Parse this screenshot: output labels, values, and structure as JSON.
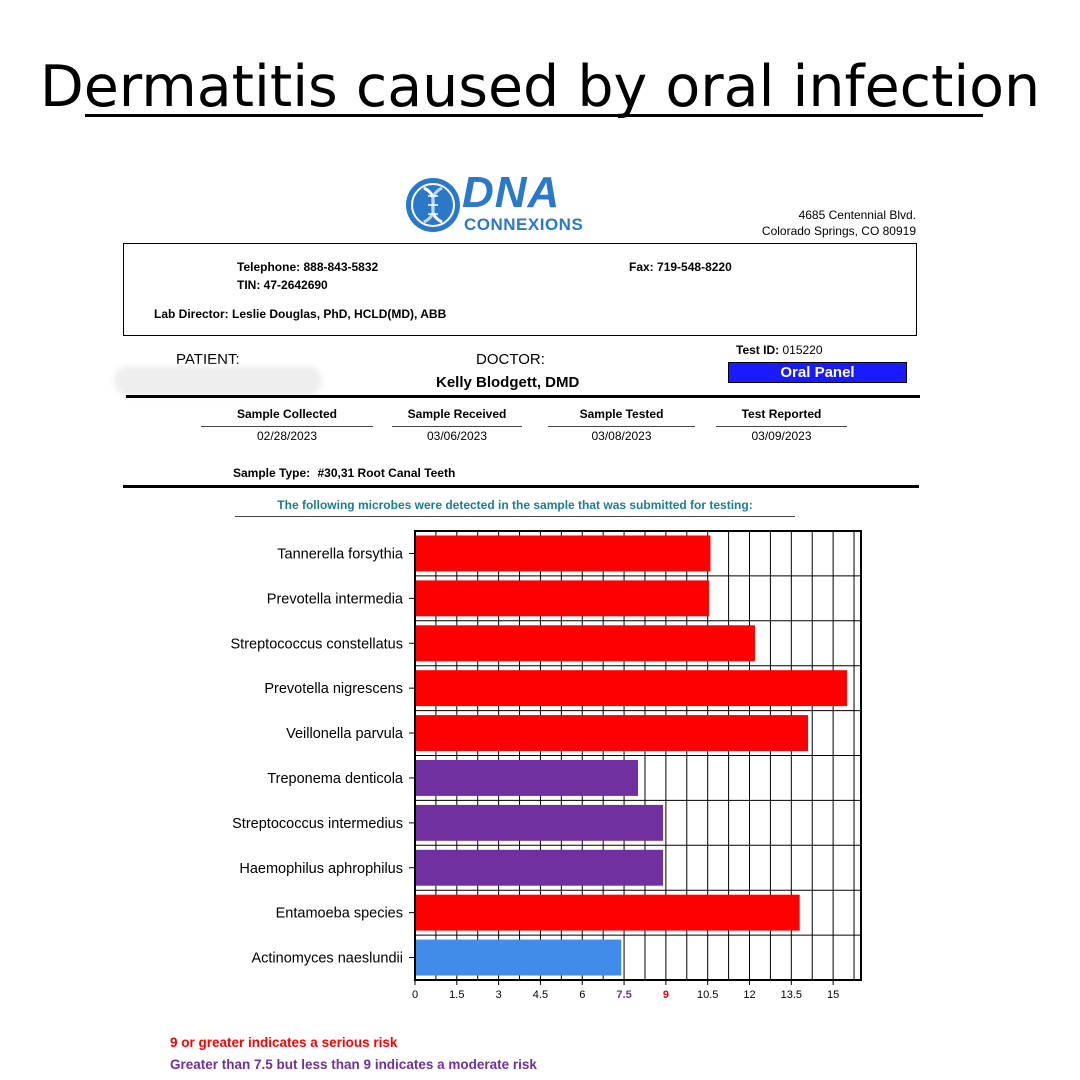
{
  "slide": {
    "title": "Dermatitis caused by oral infection"
  },
  "logo": {
    "line1": "DNA",
    "line2": "CONNEXIONS"
  },
  "address": {
    "line1": "4685 Centennial Blvd.",
    "line2": "Colorado Springs, CO 80919"
  },
  "lab": {
    "telephone_label": "Telephone:",
    "telephone": "888-843-5832",
    "tin_label": "TIN:",
    "tin": "47-2642690",
    "fax_label": "Fax:",
    "fax": "719-548-8220",
    "director_label": "Lab Director:",
    "director": "Leslie Douglas, PhD, HCLD(MD), ABB"
  },
  "patient": {
    "label": "PATIENT:"
  },
  "doctor": {
    "label": "DOCTOR:",
    "name": "Kelly Blodgett, DMD"
  },
  "test": {
    "id_label": "Test ID:",
    "id": "015220",
    "panel": "Oral Panel"
  },
  "dates": [
    {
      "label": "Sample Collected",
      "value": "02/28/2023"
    },
    {
      "label": "Sample Received",
      "value": "03/06/2023"
    },
    {
      "label": "Sample Tested",
      "value": "03/08/2023"
    },
    {
      "label": "Test Reported",
      "value": "03/09/2023"
    }
  ],
  "sample_type": {
    "label": "Sample Type:",
    "value": "#30,31 Root Canal Teeth"
  },
  "detected_note": "The following microbes were detected in the sample that was submitted for testing:",
  "colors": {
    "serious": "#ff0000",
    "moderate": "#7030a0",
    "low": "#418ce8",
    "panel": "#1a1aff",
    "note": "#1b7e8e"
  },
  "chart_data": {
    "type": "bar",
    "orientation": "horizontal",
    "categories": [
      "Tannerella forsythia",
      "Prevotella intermedia",
      "Streptococcus constellatus",
      "Prevotella nigrescens",
      "Veillonella parvula",
      "Treponema denticola",
      "Streptococcus intermedius",
      "Haemophilus aphrophilus",
      "Entamoeba species",
      "Actinomyces naeslundii"
    ],
    "values": [
      10.6,
      10.55,
      12.2,
      15.5,
      14.1,
      8.0,
      8.9,
      8.9,
      13.8,
      7.4
    ],
    "bar_colors": [
      "#ff0000",
      "#ff0000",
      "#ff0000",
      "#ff0000",
      "#ff0000",
      "#7030a0",
      "#7030a0",
      "#7030a0",
      "#ff0000",
      "#418ce8"
    ],
    "xlim": [
      0,
      16
    ],
    "x_ticks": [
      "0",
      "1.5",
      "3",
      "4.5",
      "6",
      "7.5",
      "9",
      "10.5",
      "12",
      "13.5",
      "15"
    ],
    "x_tick_values": [
      0,
      1.5,
      3,
      4.5,
      6,
      7.5,
      9,
      10.5,
      12,
      13.5,
      15
    ],
    "highlight_ticks": {
      "7.5": "#7030a0",
      "9": "#ff0000"
    },
    "grid": true
  },
  "legend": {
    "serious": "9 or greater indicates a serious risk",
    "moderate": "Greater than 7.5 but less than 9 indicates a moderate risk"
  }
}
